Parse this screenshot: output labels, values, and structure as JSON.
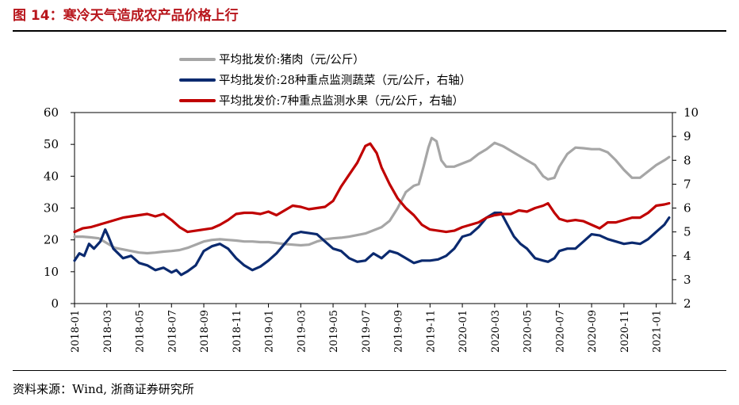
{
  "figure": {
    "title": "图 14：寒冷天气造成农产品价格上行",
    "source": "资料来源：Wind, 浙商证券研究所"
  },
  "chart_data": {
    "type": "line",
    "y_left": {
      "min": 0,
      "max": 60,
      "ticks": [
        0,
        10,
        20,
        30,
        40,
        50,
        60
      ]
    },
    "y_right": {
      "min": 2,
      "max": 10,
      "ticks": [
        2,
        3,
        4,
        5,
        6,
        7,
        8,
        9,
        10
      ]
    },
    "x_range_months": [
      0,
      37
    ],
    "x_ticks": [
      {
        "label": "2018-01",
        "m": 0
      },
      {
        "label": "2018-03",
        "m": 2
      },
      {
        "label": "2018-05",
        "m": 4
      },
      {
        "label": "2018-07",
        "m": 6
      },
      {
        "label": "2018-09",
        "m": 8
      },
      {
        "label": "2018-11",
        "m": 10
      },
      {
        "label": "2019-01",
        "m": 12
      },
      {
        "label": "2019-03",
        "m": 14
      },
      {
        "label": "2019-05",
        "m": 16
      },
      {
        "label": "2019-07",
        "m": 18
      },
      {
        "label": "2019-09",
        "m": 20
      },
      {
        "label": "2019-11",
        "m": 22
      },
      {
        "label": "2020-01",
        "m": 24
      },
      {
        "label": "2020-03",
        "m": 26
      },
      {
        "label": "2020-05",
        "m": 28
      },
      {
        "label": "2020-07",
        "m": 30
      },
      {
        "label": "2020-09",
        "m": 32
      },
      {
        "label": "2020-11",
        "m": 34
      },
      {
        "label": "2021-01",
        "m": 36
      }
    ],
    "series": [
      {
        "name": "平均批发价:猪肉（元/公斤）",
        "color": "#a6a6a6",
        "axis": "left",
        "points": [
          [
            0,
            21
          ],
          [
            0.5,
            21
          ],
          [
            1,
            20.8
          ],
          [
            1.5,
            20.5
          ],
          [
            2,
            19
          ],
          [
            2.5,
            17.5
          ],
          [
            3,
            17
          ],
          [
            3.5,
            16.5
          ],
          [
            4,
            16
          ],
          [
            4.5,
            15.8
          ],
          [
            5,
            16
          ],
          [
            5.5,
            16.3
          ],
          [
            6,
            16.5
          ],
          [
            6.5,
            16.8
          ],
          [
            7,
            17.5
          ],
          [
            7.5,
            18.5
          ],
          [
            8,
            19.5
          ],
          [
            8.5,
            20
          ],
          [
            9,
            20.2
          ],
          [
            9.5,
            20
          ],
          [
            10,
            19.8
          ],
          [
            10.5,
            19.5
          ],
          [
            11,
            19.5
          ],
          [
            11.5,
            19.3
          ],
          [
            12,
            19.3
          ],
          [
            12.5,
            19
          ],
          [
            13,
            18.7
          ],
          [
            13.5,
            18.5
          ],
          [
            14,
            18.3
          ],
          [
            14.5,
            18.5
          ],
          [
            15,
            19.5
          ],
          [
            15.5,
            20.2
          ],
          [
            16,
            20.5
          ],
          [
            16.5,
            20.7
          ],
          [
            17,
            21
          ],
          [
            17.5,
            21.5
          ],
          [
            18,
            22
          ],
          [
            18.5,
            23
          ],
          [
            19,
            24
          ],
          [
            19.5,
            26
          ],
          [
            20,
            30
          ],
          [
            20.5,
            35
          ],
          [
            21,
            37
          ],
          [
            21.3,
            37.5
          ],
          [
            21.6,
            43
          ],
          [
            21.9,
            49
          ],
          [
            22.1,
            52
          ],
          [
            22.4,
            51
          ],
          [
            22.7,
            45
          ],
          [
            23,
            43
          ],
          [
            23.5,
            43
          ],
          [
            24,
            44
          ],
          [
            24.5,
            45
          ],
          [
            25,
            47
          ],
          [
            25.5,
            48.5
          ],
          [
            26,
            50.5
          ],
          [
            26.5,
            49.5
          ],
          [
            27,
            48
          ],
          [
            27.5,
            46.5
          ],
          [
            28,
            45
          ],
          [
            28.5,
            43.5
          ],
          [
            29,
            40
          ],
          [
            29.3,
            39
          ],
          [
            29.7,
            39.5
          ],
          [
            30,
            43
          ],
          [
            30.5,
            47
          ],
          [
            31,
            49
          ],
          [
            31.5,
            48.8
          ],
          [
            32,
            48.5
          ],
          [
            32.5,
            48.5
          ],
          [
            33,
            47.5
          ],
          [
            33.5,
            45
          ],
          [
            34,
            42
          ],
          [
            34.5,
            39.5
          ],
          [
            35,
            39.5
          ],
          [
            35.5,
            41.5
          ],
          [
            36,
            43.5
          ],
          [
            36.5,
            45
          ],
          [
            36.8,
            46
          ]
        ]
      },
      {
        "name": "平均批发价:28种重点监测蔬菜（元/公斤，右轴）",
        "color": "#0b2a6f",
        "axis": "right",
        "points": [
          [
            0,
            3.8
          ],
          [
            0.3,
            4.1
          ],
          [
            0.6,
            4.0
          ],
          [
            0.9,
            4.5
          ],
          [
            1.2,
            4.3
          ],
          [
            1.6,
            4.6
          ],
          [
            1.9,
            5.1
          ],
          [
            2.1,
            4.8
          ],
          [
            2.4,
            4.3
          ],
          [
            2.7,
            4.1
          ],
          [
            3,
            3.9
          ],
          [
            3.5,
            4.0
          ],
          [
            4,
            3.7
          ],
          [
            4.5,
            3.6
          ],
          [
            5,
            3.4
          ],
          [
            5.5,
            3.5
          ],
          [
            6,
            3.3
          ],
          [
            6.3,
            3.4
          ],
          [
            6.6,
            3.2
          ],
          [
            7,
            3.35
          ],
          [
            7.5,
            3.6
          ],
          [
            8,
            4.2
          ],
          [
            8.5,
            4.4
          ],
          [
            9,
            4.5
          ],
          [
            9.5,
            4.3
          ],
          [
            10,
            3.9
          ],
          [
            10.5,
            3.6
          ],
          [
            11,
            3.4
          ],
          [
            11.5,
            3.55
          ],
          [
            12,
            3.8
          ],
          [
            12.5,
            4.1
          ],
          [
            13,
            4.5
          ],
          [
            13.5,
            4.9
          ],
          [
            14,
            5.0
          ],
          [
            14.5,
            4.95
          ],
          [
            15,
            4.9
          ],
          [
            15.5,
            4.6
          ],
          [
            16,
            4.3
          ],
          [
            16.5,
            4.2
          ],
          [
            17,
            3.9
          ],
          [
            17.5,
            3.75
          ],
          [
            18,
            3.8
          ],
          [
            18.5,
            4.1
          ],
          [
            19,
            3.9
          ],
          [
            19.5,
            4.2
          ],
          [
            20,
            4.1
          ],
          [
            20.5,
            3.9
          ],
          [
            21,
            3.7
          ],
          [
            21.5,
            3.8
          ],
          [
            22,
            3.8
          ],
          [
            22.5,
            3.85
          ],
          [
            23,
            4.0
          ],
          [
            23.5,
            4.3
          ],
          [
            24,
            4.8
          ],
          [
            24.5,
            4.9
          ],
          [
            25,
            5.2
          ],
          [
            25.5,
            5.6
          ],
          [
            26,
            5.8
          ],
          [
            26.4,
            5.8
          ],
          [
            26.8,
            5.3
          ],
          [
            27.2,
            4.8
          ],
          [
            27.6,
            4.5
          ],
          [
            28,
            4.3
          ],
          [
            28.5,
            3.9
          ],
          [
            29,
            3.8
          ],
          [
            29.3,
            3.75
          ],
          [
            29.7,
            3.9
          ],
          [
            30,
            4.2
          ],
          [
            30.5,
            4.3
          ],
          [
            31,
            4.3
          ],
          [
            31.5,
            4.6
          ],
          [
            32,
            4.9
          ],
          [
            32.5,
            4.85
          ],
          [
            33,
            4.7
          ],
          [
            33.5,
            4.6
          ],
          [
            34,
            4.5
          ],
          [
            34.5,
            4.55
          ],
          [
            35,
            4.5
          ],
          [
            35.5,
            4.7
          ],
          [
            36,
            5.0
          ],
          [
            36.5,
            5.3
          ],
          [
            36.8,
            5.6
          ]
        ]
      },
      {
        "name": "平均批发价:7种重点监测水果（元/公斤，右轴）",
        "color": "#c00000",
        "axis": "right",
        "points": [
          [
            0,
            5.0
          ],
          [
            0.5,
            5.15
          ],
          [
            1,
            5.2
          ],
          [
            1.5,
            5.3
          ],
          [
            2,
            5.4
          ],
          [
            2.5,
            5.5
          ],
          [
            3,
            5.6
          ],
          [
            3.5,
            5.65
          ],
          [
            4,
            5.7
          ],
          [
            4.5,
            5.75
          ],
          [
            5,
            5.65
          ],
          [
            5.5,
            5.75
          ],
          [
            6,
            5.5
          ],
          [
            6.5,
            5.2
          ],
          [
            7,
            5.0
          ],
          [
            7.5,
            5.05
          ],
          [
            8,
            5.1
          ],
          [
            8.5,
            5.15
          ],
          [
            9,
            5.3
          ],
          [
            9.5,
            5.5
          ],
          [
            10,
            5.75
          ],
          [
            10.5,
            5.8
          ],
          [
            11,
            5.8
          ],
          [
            11.5,
            5.75
          ],
          [
            12,
            5.85
          ],
          [
            12.5,
            5.7
          ],
          [
            13,
            5.9
          ],
          [
            13.5,
            6.1
          ],
          [
            14,
            6.05
          ],
          [
            14.5,
            5.95
          ],
          [
            15,
            6.0
          ],
          [
            15.5,
            6.05
          ],
          [
            16,
            6.3
          ],
          [
            16.5,
            6.9
          ],
          [
            17,
            7.4
          ],
          [
            17.5,
            7.9
          ],
          [
            18,
            8.6
          ],
          [
            18.3,
            8.7
          ],
          [
            18.7,
            8.3
          ],
          [
            19,
            7.7
          ],
          [
            19.5,
            7.0
          ],
          [
            20,
            6.4
          ],
          [
            20.5,
            6.0
          ],
          [
            21,
            5.7
          ],
          [
            21.5,
            5.3
          ],
          [
            22,
            5.1
          ],
          [
            22.5,
            5.05
          ],
          [
            23,
            5.0
          ],
          [
            23.5,
            5.05
          ],
          [
            24,
            5.2
          ],
          [
            24.5,
            5.3
          ],
          [
            25,
            5.4
          ],
          [
            25.5,
            5.6
          ],
          [
            26,
            5.7
          ],
          [
            26.5,
            5.75
          ],
          [
            27,
            5.75
          ],
          [
            27.5,
            5.9
          ],
          [
            28,
            5.85
          ],
          [
            28.5,
            6.0
          ],
          [
            29,
            6.1
          ],
          [
            29.3,
            6.2
          ],
          [
            29.7,
            5.8
          ],
          [
            30,
            5.55
          ],
          [
            30.5,
            5.45
          ],
          [
            31,
            5.5
          ],
          [
            31.5,
            5.45
          ],
          [
            32,
            5.3
          ],
          [
            32.5,
            5.15
          ],
          [
            33,
            5.4
          ],
          [
            33.5,
            5.4
          ],
          [
            34,
            5.5
          ],
          [
            34.5,
            5.6
          ],
          [
            35,
            5.6
          ],
          [
            35.5,
            5.8
          ],
          [
            36,
            6.1
          ],
          [
            36.5,
            6.15
          ],
          [
            36.8,
            6.2
          ]
        ]
      }
    ]
  }
}
